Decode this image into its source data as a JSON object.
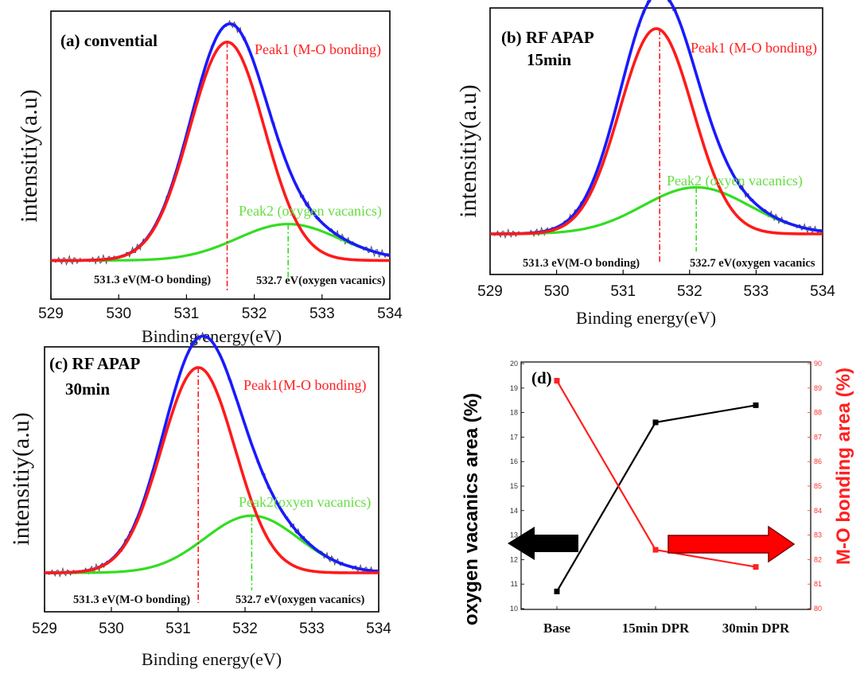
{
  "colors": {
    "total": "#1a1aff",
    "peak1": "#ff1a1a",
    "peak2": "#33dd22",
    "raw": "#555555",
    "peak1_text": "#ff2020",
    "peak2_text": "#66dd44",
    "series_left": "#000000",
    "series_right": "#ff2020"
  },
  "chart_data": [
    {
      "id": "a",
      "type": "line",
      "title": "(a) convential",
      "title_line2": "",
      "xlabel": "Binding energy(eV)",
      "ylabel": "intensitiy(a.u)",
      "xlim": [
        529,
        534
      ],
      "x_ticks": [
        "529",
        "530",
        "531",
        "532",
        "533",
        "534"
      ],
      "peak1_label": "Peak1 (M-O bonding)",
      "peak2_label": "Peak2 (oxygen vacanics)",
      "ann1": "531.3 eV(M-O bonding)",
      "ann2": "532.7 eV(oxygen vacanics)",
      "baseline": 0.03,
      "peak1": {
        "center": 531.6,
        "height": 0.96,
        "sigma": 0.55
      },
      "peak2": {
        "center": 532.5,
        "height": 0.16,
        "sigma": 0.75
      },
      "peak1_marker": 531.6,
      "peak2_marker": 532.5
    },
    {
      "id": "b",
      "type": "line",
      "title": "(b) RF APAP",
      "title_line2": "15min",
      "xlabel": "Binding energy(eV)",
      "ylabel": "intensitiy(a.u)",
      "xlim": [
        529,
        534
      ],
      "x_ticks": [
        "529",
        "530",
        "531",
        "532",
        "533",
        "534"
      ],
      "peak1_label": "Peak1 (M-O bonding)",
      "peak2_label": "Peak2 (oxyen vacanics)",
      "ann1": "531.3 eV(M-O bonding)",
      "ann2": "532.7 eV(oxygen vacanics",
      "baseline": 0.03,
      "peak1": {
        "center": 531.5,
        "height": 0.97,
        "sigma": 0.55
      },
      "peak2": {
        "center": 532.1,
        "height": 0.22,
        "sigma": 0.8
      },
      "peak1_marker": 531.55,
      "peak2_marker": 532.1
    },
    {
      "id": "c",
      "type": "line",
      "title": "(c) RF APAP",
      "title_line2": "30min",
      "xlabel": "Binding energy(eV)",
      "ylabel": "intensitiy(a.u)",
      "xlim": [
        529,
        534
      ],
      "x_ticks": [
        "529",
        "530",
        "531",
        "532",
        "533",
        "534"
      ],
      "peak1_label": "Peak1(M-O bonding)",
      "peak2_label": "Peak2(oxyen vacanics)",
      "ann1": "531.3 eV(M-O bonding)",
      "ann2": "532.7 eV(oxygen vacanics)",
      "baseline": 0.03,
      "peak1": {
        "center": 531.3,
        "height": 0.97,
        "sigma": 0.55
      },
      "peak2": {
        "center": 532.1,
        "height": 0.27,
        "sigma": 0.7
      },
      "peak1_marker": 531.3,
      "peak2_marker": 532.1
    },
    {
      "id": "d",
      "type": "line",
      "title": "(d)",
      "categories": [
        "Base",
        "15min DPR",
        "30min DPR"
      ],
      "ylabel_left": "oxygen vacanics area (%)",
      "ylabel_right": "M-O bonding area (%)",
      "ylim_left": [
        10,
        20
      ],
      "ylim_right": [
        80,
        90
      ],
      "y_ticks_left": [
        "10",
        "11",
        "12",
        "13",
        "14",
        "15",
        "16",
        "17",
        "18",
        "19",
        "20"
      ],
      "y_ticks_right": [
        "80",
        "81",
        "82",
        "83",
        "84",
        "85",
        "86",
        "87",
        "88",
        "89",
        "90"
      ],
      "series": [
        {
          "axis": "left",
          "values": [
            10.7,
            17.6,
            18.3
          ]
        },
        {
          "axis": "right",
          "values": [
            89.3,
            82.4,
            81.7
          ]
        }
      ]
    }
  ]
}
